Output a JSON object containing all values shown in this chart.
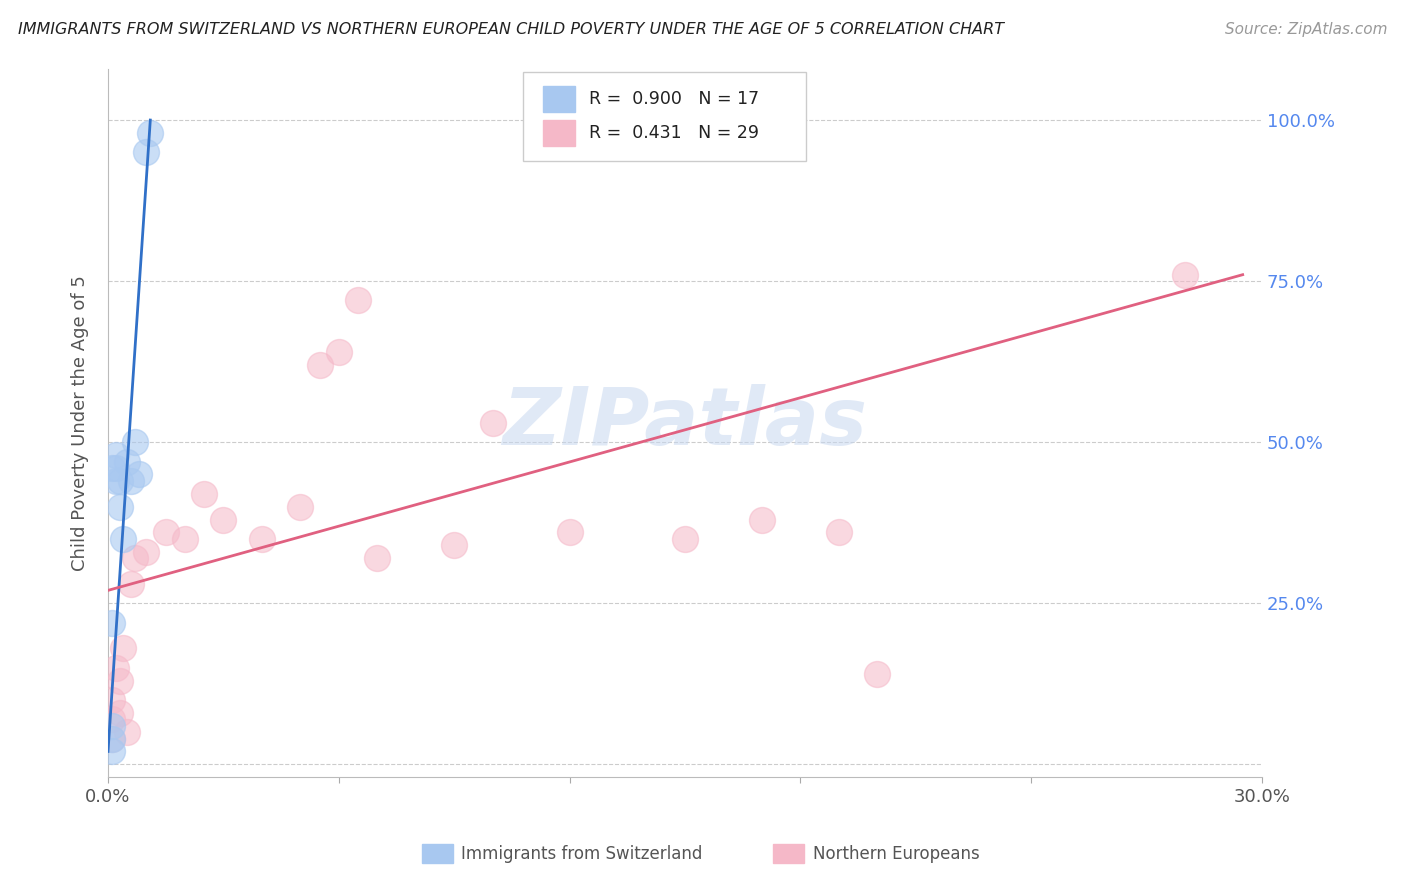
{
  "title": "IMMIGRANTS FROM SWITZERLAND VS NORTHERN EUROPEAN CHILD POVERTY UNDER THE AGE OF 5 CORRELATION CHART",
  "source": "Source: ZipAtlas.com",
  "ylabel": "Child Poverty Under the Age of 5",
  "xlim": [
    0.0,
    0.3
  ],
  "ylim": [
    -0.02,
    1.08
  ],
  "ytick_vals": [
    0.0,
    0.25,
    0.5,
    0.75,
    1.0
  ],
  "ytick_labels": [
    "",
    "25.0%",
    "50.0%",
    "75.0%",
    "100.0%"
  ],
  "xtick_vals": [
    0.0,
    0.06,
    0.12,
    0.18,
    0.24,
    0.3
  ],
  "xtick_labels": [
    "0.0%",
    "",
    "",
    "",
    "",
    "30.0%"
  ],
  "legend_labels": [
    "Immigrants from Switzerland",
    "Northern Europeans"
  ],
  "R_blue": 0.9,
  "N_blue": 17,
  "R_pink": 0.431,
  "N_pink": 29,
  "blue_color": "#A8C8F0",
  "pink_color": "#F5B8C8",
  "blue_line_color": "#3070C8",
  "pink_line_color": "#E06080",
  "watermark": "ZIPatlas",
  "blue_scatter_x": [
    0.001,
    0.001,
    0.001,
    0.001,
    0.001,
    0.002,
    0.002,
    0.002,
    0.003,
    0.003,
    0.004,
    0.005,
    0.006,
    0.007,
    0.008,
    0.01,
    0.011
  ],
  "blue_scatter_y": [
    0.02,
    0.04,
    0.06,
    0.22,
    0.46,
    0.44,
    0.46,
    0.48,
    0.4,
    0.44,
    0.35,
    0.47,
    0.44,
    0.5,
    0.45,
    0.95,
    0.98
  ],
  "blue_line_x0": 0.0,
  "blue_line_y0": 0.02,
  "blue_line_x1": 0.011,
  "blue_line_y1": 1.0,
  "pink_scatter_x": [
    0.001,
    0.001,
    0.001,
    0.002,
    0.003,
    0.003,
    0.004,
    0.005,
    0.006,
    0.007,
    0.01,
    0.015,
    0.02,
    0.025,
    0.03,
    0.04,
    0.05,
    0.055,
    0.06,
    0.065,
    0.07,
    0.09,
    0.1,
    0.12,
    0.15,
    0.17,
    0.19,
    0.2,
    0.28
  ],
  "pink_scatter_y": [
    0.04,
    0.07,
    0.1,
    0.15,
    0.08,
    0.13,
    0.18,
    0.05,
    0.28,
    0.32,
    0.33,
    0.36,
    0.35,
    0.42,
    0.38,
    0.35,
    0.4,
    0.62,
    0.64,
    0.72,
    0.32,
    0.34,
    0.53,
    0.36,
    0.35,
    0.38,
    0.36,
    0.14,
    0.76
  ],
  "pink_line_x0": 0.0,
  "pink_line_y0": 0.27,
  "pink_line_x1": 0.295,
  "pink_line_y1": 0.76
}
